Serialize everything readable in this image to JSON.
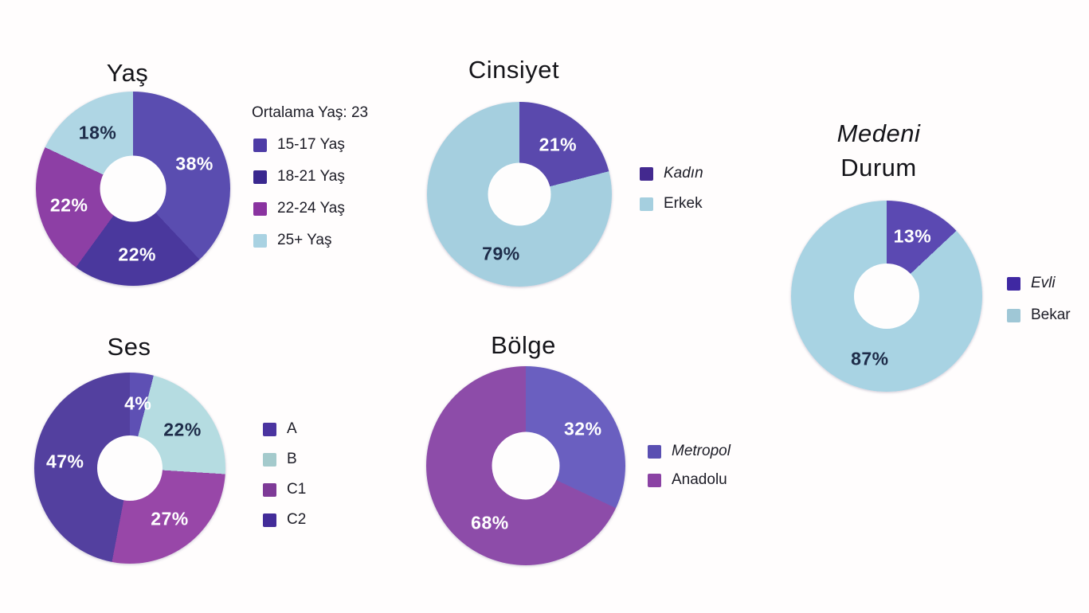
{
  "page": {
    "background_color": "#fffdfd",
    "text_color": "#1b1b22",
    "dark_label_color": "#1e2c49",
    "light_label_color": "#ffffff"
  },
  "chart_data": [
    {
      "type": "pie",
      "donut": true,
      "title": "Yaş",
      "title_lines": [
        {
          "text": "Yaş",
          "italic": false
        }
      ],
      "note": "Ortalama Yaş: 23",
      "legend_position": "right",
      "categories": [
        "15-17 Yaş",
        "18-21 Yaş",
        "22-24 Yaş",
        "25+ Yaş"
      ],
      "values": [
        38,
        22,
        22,
        18
      ],
      "slices": [
        {
          "label": "15-17 Yaş",
          "value": 38,
          "color": "#5a4db0",
          "legend_color": "#4e3ca6",
          "label_color": "#ffffff",
          "legend_italic": false
        },
        {
          "label": "18-21 Yaş",
          "value": 22,
          "color": "#4a389d",
          "legend_color": "#3a288f",
          "label_color": "#ffffff",
          "legend_italic": false
        },
        {
          "label": "22-24 Yaş",
          "value": 22,
          "color": "#8d3fa5",
          "legend_color": "#8a33a0",
          "label_color": "#ffffff",
          "legend_italic": false
        },
        {
          "label": "25+ Yaş",
          "value": 18,
          "color": "#afd6e4",
          "legend_color": "#a9d2e2",
          "label_color": "#1e2c49",
          "legend_italic": false
        }
      ]
    },
    {
      "type": "pie",
      "donut": true,
      "title": "Cinsiyet",
      "title_lines": [
        {
          "text": "Cinsiyet",
          "italic": false
        }
      ],
      "legend_position": "right",
      "categories": [
        "Kadın",
        "Erkek"
      ],
      "values": [
        21,
        79
      ],
      "slices": [
        {
          "label": "Kadın",
          "value": 21,
          "color": "#5a49ad",
          "legend_color": "#43298f",
          "label_color": "#ffffff",
          "legend_italic": true
        },
        {
          "label": "Erkek",
          "value": 79,
          "color": "#a5cfdf",
          "legend_color": "#a5cfdf",
          "label_color": "#1e2c49",
          "legend_italic": false,
          "label_angle": 197
        }
      ]
    },
    {
      "type": "pie",
      "donut": true,
      "title": "Medeni Durum",
      "title_lines": [
        {
          "text": "Medeni",
          "italic": true
        },
        {
          "text": "Durum",
          "italic": false
        }
      ],
      "legend_position": "right",
      "categories": [
        "Evli",
        "Bekar"
      ],
      "values": [
        13,
        87
      ],
      "slices": [
        {
          "label": "Evli",
          "value": 13,
          "color": "#5b49b2",
          "legend_color": "#3f28a2",
          "label_color": "#ffffff",
          "legend_italic": true
        },
        {
          "label": "Bekar",
          "value": 87,
          "color": "#a8d3e3",
          "legend_color": "#9fc7d6",
          "label_color": "#1e2c49",
          "legend_italic": false,
          "label_angle": 195
        }
      ]
    },
    {
      "type": "pie",
      "donut": true,
      "title": "Ses",
      "title_lines": [
        {
          "text": "Ses",
          "italic": false
        }
      ],
      "legend_position": "right",
      "categories": [
        "A",
        "B",
        "C1",
        "C2"
      ],
      "values": [
        4,
        22,
        27,
        47
      ],
      "slices": [
        {
          "label": "A",
          "value": 4,
          "color": "#5e50b4",
          "legend_color": "#4b34a0",
          "label_color": "#ffffff",
          "legend_italic": false
        },
        {
          "label": "B",
          "value": 22,
          "color": "#b5dce1",
          "legend_color": "#a4cacc",
          "label_color": "#1e2c49",
          "legend_italic": false
        },
        {
          "label": "C1",
          "value": 27,
          "color": "#9847a8",
          "legend_color": "#7e3a97",
          "label_color": "#ffffff",
          "legend_italic": false
        },
        {
          "label": "C2",
          "value": 47,
          "color": "#53409f",
          "legend_color": "#432c99",
          "label_color": "#ffffff",
          "legend_italic": false
        }
      ]
    },
    {
      "type": "pie",
      "donut": true,
      "title": "Bölge",
      "title_lines": [
        {
          "text": "Bölge",
          "italic": false
        }
      ],
      "legend_position": "right",
      "categories": [
        "Metropol",
        "Anadolu"
      ],
      "values": [
        32,
        68
      ],
      "slices": [
        {
          "label": "Metropol",
          "value": 32,
          "color": "#6a5fc0",
          "legend_color": "#5a4fb2",
          "label_color": "#ffffff",
          "legend_italic": true
        },
        {
          "label": "Anadolu",
          "value": 68,
          "color": "#8d4ca9",
          "legend_color": "#8b42a4",
          "label_color": "#ffffff",
          "legend_italic": false,
          "label_angle": 212
        }
      ]
    }
  ]
}
